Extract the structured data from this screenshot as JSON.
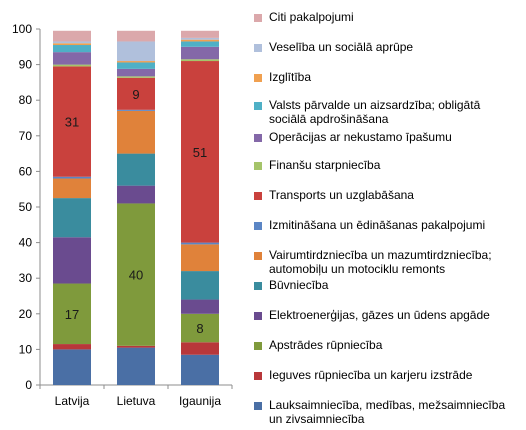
{
  "chart_data": {
    "type": "bar",
    "stacked": true,
    "categories": [
      "Latvija",
      "Lietuva",
      "Igaunija"
    ],
    "ylim": [
      0,
      100
    ],
    "yticks": [
      0,
      10,
      20,
      30,
      40,
      50,
      60,
      70,
      80,
      90,
      100
    ],
    "grid": false,
    "legend_position": "right",
    "series": [
      {
        "name": "Lauksaimniecība, medības, mežsaimniecība un zivsaimniecība",
        "color": "#4a6fa5",
        "values": [
          10,
          10.5,
          8.5
        ]
      },
      {
        "name": "Ieguves rūpniecība un karjeru izstrāde",
        "color": "#b8373a",
        "values": [
          1.5,
          0.5,
          3.5
        ]
      },
      {
        "name": "Apstrādes rūpniecība",
        "color": "#7f9a3c",
        "values": [
          17,
          40,
          8
        ]
      },
      {
        "name": "Elektroenerģijas, gāzes un ūdens apgāde",
        "color": "#6a4b8f",
        "values": [
          13,
          5,
          4
        ]
      },
      {
        "name": "Būvniecība",
        "color": "#3a8c9e",
        "values": [
          11,
          9,
          8
        ]
      },
      {
        "name": "Vairumtirdzniecība un mazumtirdzniecība; automobiļu un motociklu remonts",
        "color": "#e0823a",
        "values": [
          5.5,
          12,
          7.5
        ]
      },
      {
        "name": "Izmitināšana un ēdināšanas pakalpojumi",
        "color": "#5b86c5",
        "values": [
          0.5,
          0.3,
          0.5
        ]
      },
      {
        "name": "Transports un uzglabāšana",
        "color": "#c9413d",
        "values": [
          31,
          9,
          51
        ]
      },
      {
        "name": "Finanšu starpniecība",
        "color": "#a5c46a",
        "values": [
          0.5,
          0.4,
          0.5
        ]
      },
      {
        "name": "Operācijas ar nekustamo īpašumu",
        "color": "#8468a8",
        "values": [
          3.5,
          2.1,
          3.5
        ]
      },
      {
        "name": "Valsts pārvalde un aizsardzība; obligātā sociālā apdrošināšana",
        "color": "#4fb0c6",
        "values": [
          2,
          1.8,
          1.5
        ]
      },
      {
        "name": "Izglītība",
        "color": "#f0a050",
        "values": [
          0.5,
          0.4,
          0.5
        ]
      },
      {
        "name": "Veselība un sociālā aprūpe",
        "color": "#b0c0dc",
        "values": [
          0.5,
          5.5,
          0.5
        ]
      },
      {
        "name": "Citi pakalpojumi",
        "color": "#dba8ab",
        "values": [
          3,
          3,
          2
        ]
      }
    ],
    "data_labels": [
      {
        "category": "Latvija",
        "series": "Apstrādes rūpniecība",
        "text": "17"
      },
      {
        "category": "Latvija",
        "series": "Transports un uzglabāšana",
        "text": "31"
      },
      {
        "category": "Lietuva",
        "series": "Apstrādes rūpniecība",
        "text": "40"
      },
      {
        "category": "Lietuva",
        "series": "Transports un uzglabāšana",
        "text": "9"
      },
      {
        "category": "Igaunija",
        "series": "Apstrādes rūpniecība",
        "text": "8"
      },
      {
        "category": "Igaunija",
        "series": "Transports un uzglabāšana",
        "text": "51"
      }
    ]
  },
  "legend": [
    {
      "label": "Citi pakalpojumi",
      "color": "#dba8ab"
    },
    {
      "label": "Veselība un sociālā aprūpe",
      "color": "#b0c0dc"
    },
    {
      "label": "Izglītība",
      "color": "#f0a050"
    },
    {
      "label": "Valsts pārvalde un aizsardzība; obligātā sociālā apdrošināšana",
      "color": "#4fb0c6"
    },
    {
      "label": "Operācijas ar nekustamo īpašumu",
      "color": "#8468a8"
    },
    {
      "label": "Finanšu starpniecība",
      "color": "#a5c46a"
    },
    {
      "label": "Transports un uzglabāšana",
      "color": "#c9413d"
    },
    {
      "label": "Izmitināšana un ēdināšanas pakalpojumi",
      "color": "#5b86c5"
    },
    {
      "label": "Vairumtirdzniecība un mazumtirdzniecība; automobiļu un motociklu remonts",
      "color": "#e0823a"
    },
    {
      "label": "Būvniecība",
      "color": "#3a8c9e"
    },
    {
      "label": "Elektroenerģijas, gāzes un ūdens apgāde",
      "color": "#6a4b8f"
    },
    {
      "label": "Apstrādes rūpniecība",
      "color": "#7f9a3c"
    },
    {
      "label": "Ieguves rūpniecība un karjeru izstrāde",
      "color": "#b8373a"
    },
    {
      "label": "Lauksaimniecība, medības, mežsaimniecība un zivsaimniecība",
      "color": "#4a6fa5"
    }
  ]
}
